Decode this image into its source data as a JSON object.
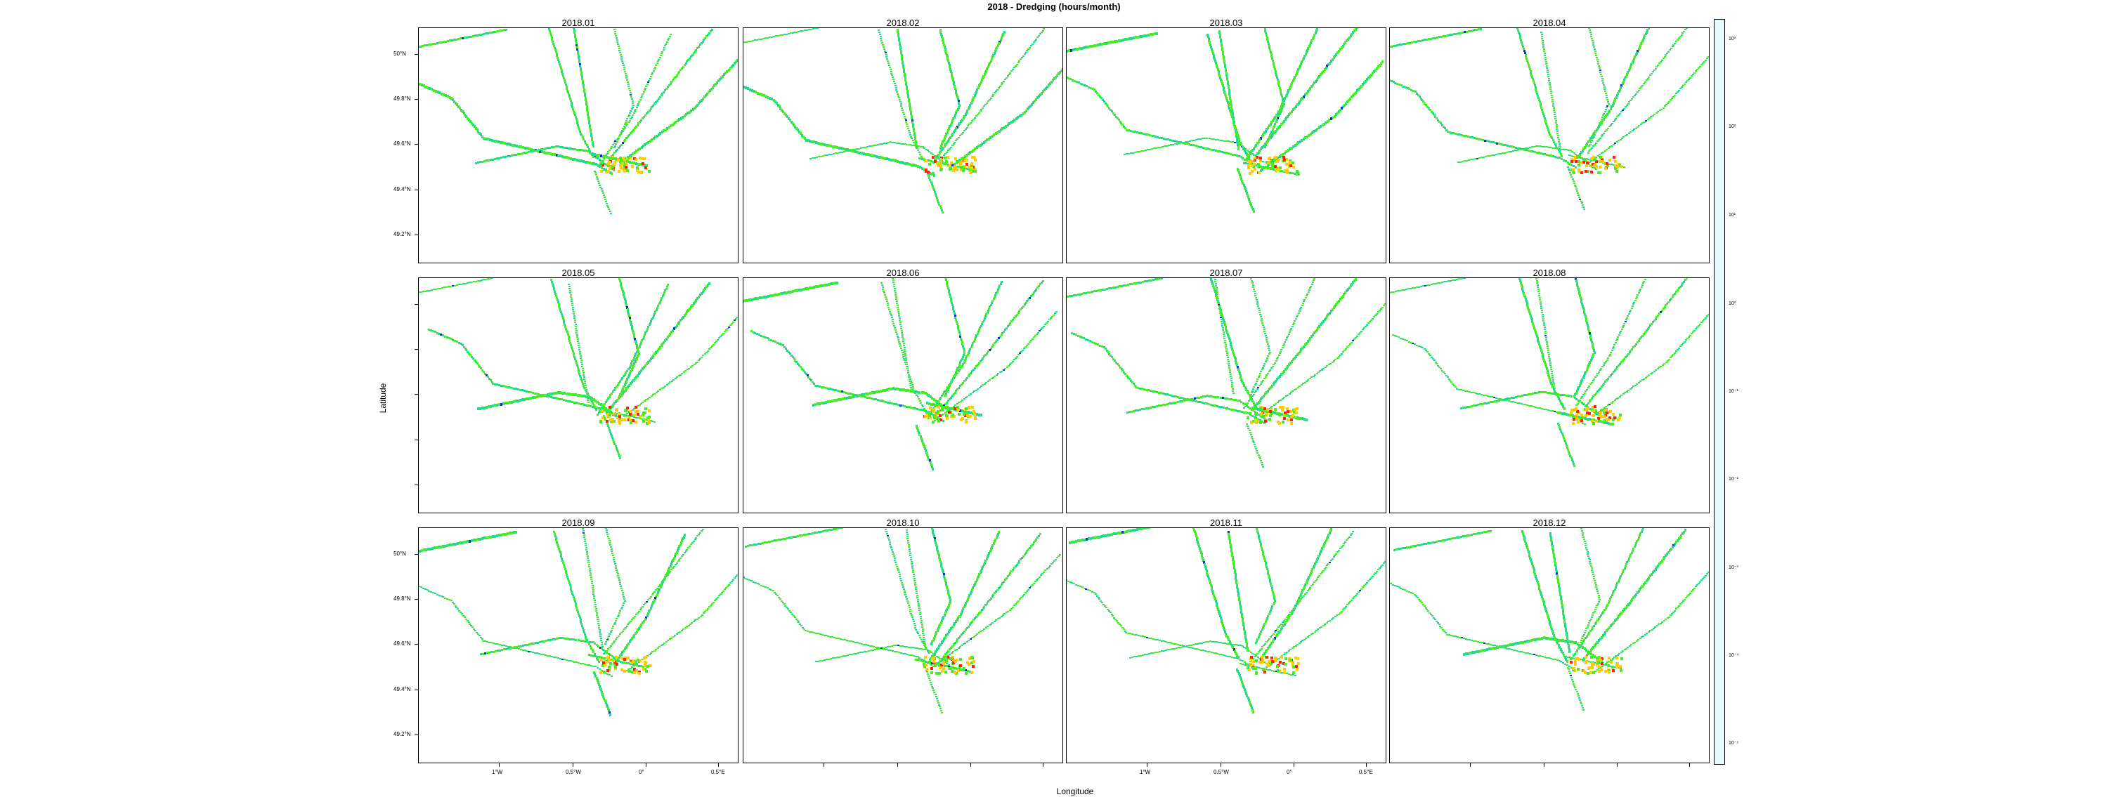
{
  "title": "2018 - Dredging (hours/month)",
  "xlabel": "Longitude",
  "ylabel": "Latitude",
  "panels": [
    "2018.01",
    "2018.02",
    "2018.03",
    "2018.04",
    "2018.05",
    "2018.06",
    "2018.07",
    "2018.08",
    "2018.09",
    "2018.10",
    "2018.11",
    "2018.12"
  ],
  "lat_ticks": [
    "50°N",
    "49.8°N",
    "49.6°N",
    "49.4°N",
    "49.2°N"
  ],
  "lon_ticks": [
    "1°W",
    "0.5°W",
    "0°",
    "0.5°E"
  ],
  "colorbar_ticks": [
    "10⁻⁵",
    "10⁻⁴",
    "10⁻³",
    "10⁻²",
    "10⁻¹",
    "10⁰",
    "10¹",
    "10²",
    "10³"
  ],
  "colors": {
    "track_low": "#22dd88",
    "track_mid": "#44ee22",
    "track_high": "#ffcc00",
    "hot": "#ff2200",
    "scale": [
      "#e8f8ff",
      "#aac8ff",
      "#2244ee",
      "#00cccc",
      "#22ee44",
      "#88ee00",
      "#ffcc00",
      "#ff4400",
      "#cc0000",
      "#000000"
    ]
  },
  "chart_data": {
    "type": "heatmap",
    "layout": "3 rows x 4 columns of monthly maps",
    "color_scale": "log",
    "color_range": [
      1e-05,
      1000
    ],
    "legend": "right"
  }
}
